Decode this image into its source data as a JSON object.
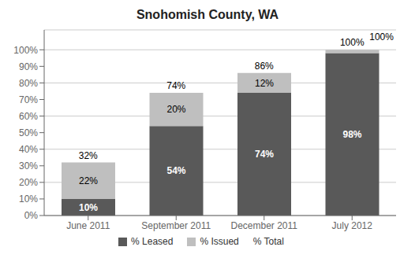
{
  "chart_data": {
    "type": "bar",
    "title": "Snohomish County, WA",
    "categories": [
      "June 2011",
      "September 2011",
      "December 2011",
      "July 2012"
    ],
    "series": [
      {
        "name": "% Leased",
        "color": "#595959",
        "values": [
          10,
          54,
          74,
          98
        ],
        "value_labels": [
          "10%",
          "54%",
          "74%",
          "98%"
        ]
      },
      {
        "name": "% Issued",
        "color": "#bfbfbf",
        "values": [
          22,
          20,
          12,
          2
        ],
        "value_labels": [
          "22%",
          "20%",
          "12%",
          null
        ]
      },
      {
        "name": "% Total",
        "type": "text",
        "values": [
          32,
          74,
          86,
          100
        ],
        "value_labels": [
          "32%",
          "74%",
          "86%",
          "100%"
        ]
      }
    ],
    "stacked": true,
    "data_labels": true,
    "ylim": [
      0,
      112
    ],
    "yticks": [
      {
        "value": 0,
        "label": "0%"
      },
      {
        "value": 10,
        "label": "10%"
      },
      {
        "value": 20,
        "label": "20%"
      },
      {
        "value": 30,
        "label": "30%"
      },
      {
        "value": 40,
        "label": "40%"
      },
      {
        "value": 50,
        "label": "50%"
      },
      {
        "value": 60,
        "label": "60%"
      },
      {
        "value": 70,
        "label": "70%"
      },
      {
        "value": 80,
        "label": "80%"
      },
      {
        "value": 90,
        "label": "90%"
      },
      {
        "value": 100,
        "label": "100%"
      }
    ],
    "grid": true,
    "legend": "bottom",
    "annotations": [
      {
        "text": "100%",
        "y": 108
      }
    ]
  }
}
